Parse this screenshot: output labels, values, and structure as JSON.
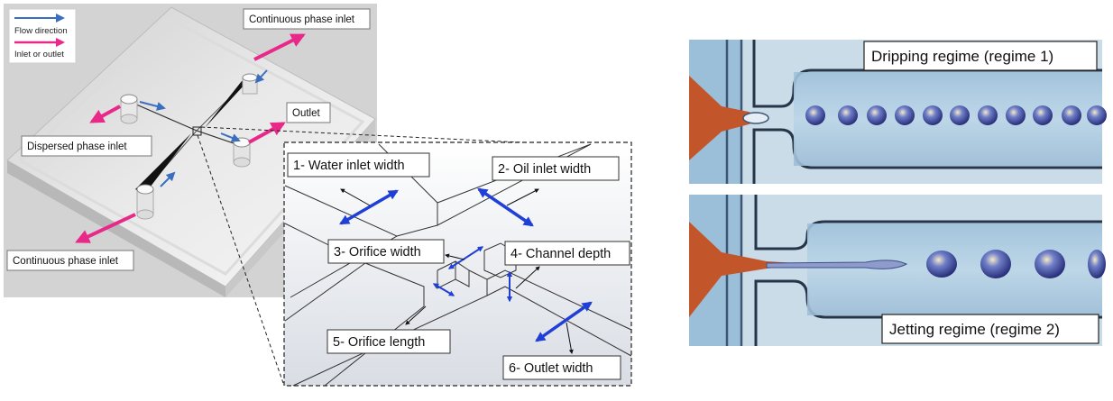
{
  "device": {
    "legend": {
      "flow_direction": "Flow direction",
      "inlet_or_outlet": "Inlet or outlet"
    },
    "labels": {
      "continuous_inlet_top": "Continuous phase inlet",
      "outlet": "Outlet",
      "dispersed_inlet": "Dispersed phase inlet",
      "continuous_inlet_bottom": "Continuous phase inlet"
    }
  },
  "zoom": {
    "labels": {
      "water_inlet_width": "1- Water inlet width",
      "oil_inlet_width": "2- Oil inlet width",
      "orifice_width": "3- Orifice width",
      "channel_depth": "4- Channel depth",
      "orifice_length": "5- Orifice length",
      "outlet_width": "6- Outlet width"
    }
  },
  "regimes": {
    "dripping": "Dripping regime (regime 1)",
    "jetting": "Jetting regime (regime 2)"
  },
  "colors": {
    "flow_arrow": "#3a6fbf",
    "inlet_arrow": "#e8298a",
    "dimension_arrow": "#1f3fd6",
    "channel_blue": "#a9c6dd",
    "orange_phase": "#c2552a"
  }
}
